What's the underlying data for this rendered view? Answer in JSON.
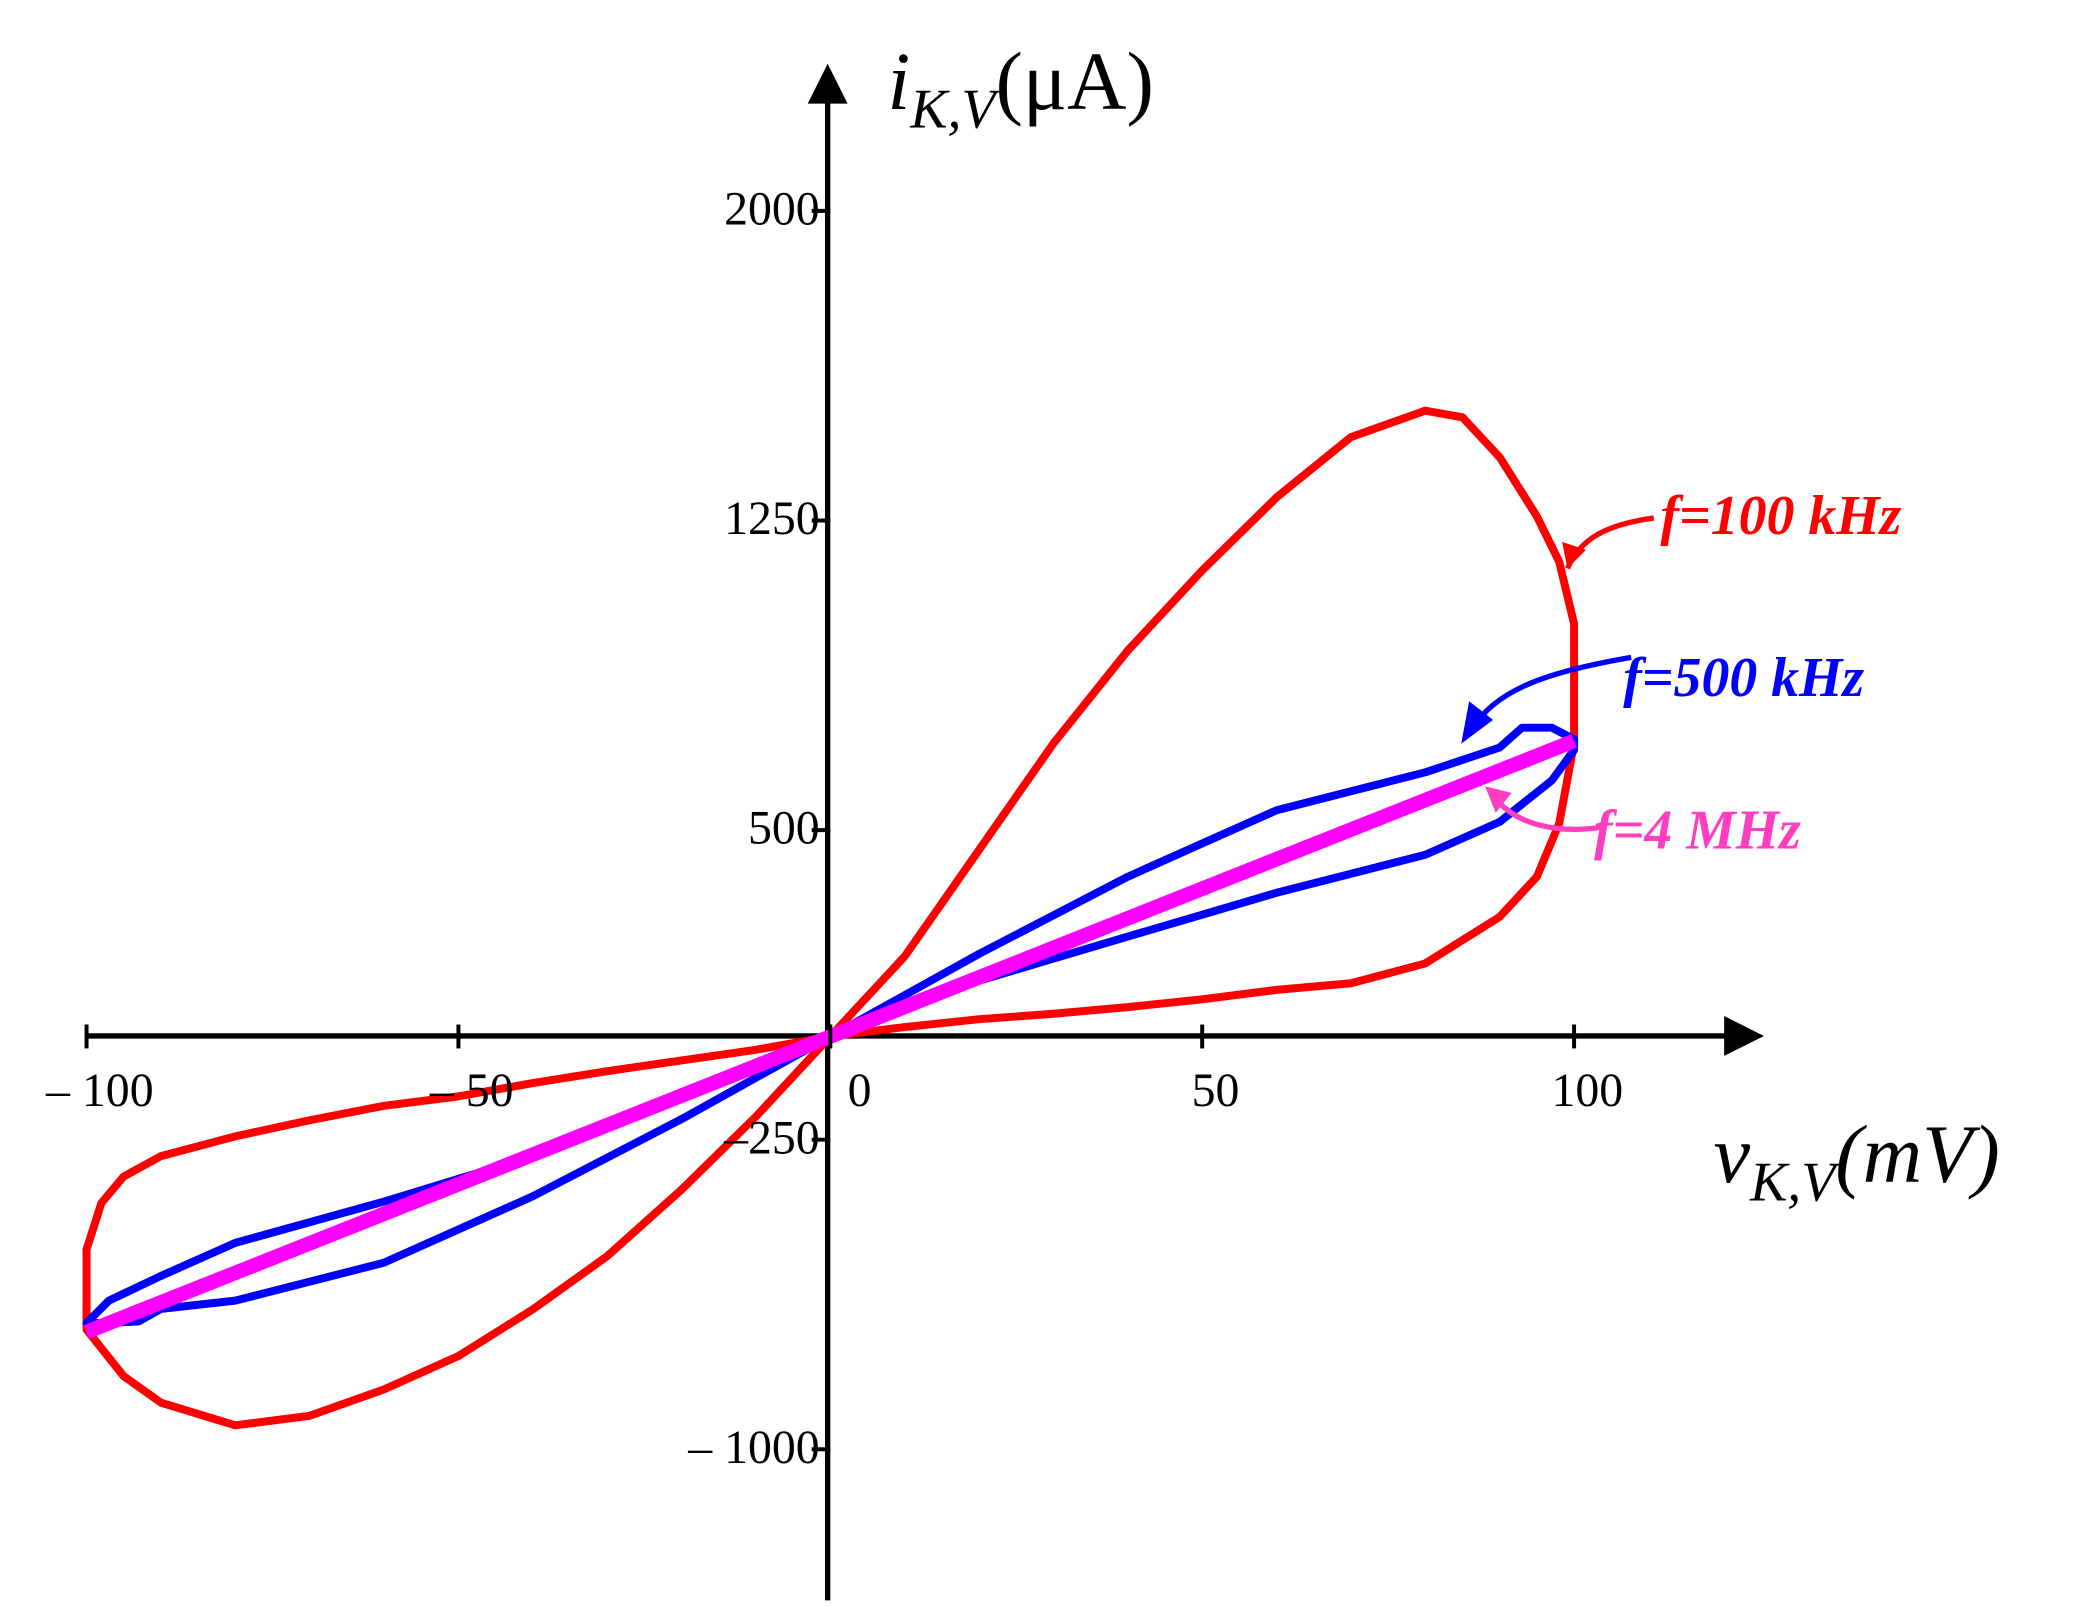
{
  "chart_data": {
    "type": "line",
    "x_label": {
      "main": "v",
      "sub": "K,V",
      "unit": "(mV)"
    },
    "y_label": {
      "main": "i",
      "sub": "K,V",
      "unit": "(μA)"
    },
    "xlim": [
      -100,
      125
    ],
    "ylim": [
      -1350,
      2350
    ],
    "xticks": [
      {
        "value": -100,
        "label": "– 100"
      },
      {
        "value": -50,
        "label": "– 50"
      },
      0,
      50,
      100
    ],
    "yticks": [
      {
        "value": -1000,
        "label": "– 1000"
      },
      {
        "value": -250,
        "label": "–250"
      },
      500,
      1250,
      2000
    ],
    "series": [
      {
        "name": "f=100 kHz",
        "color": "#ff0000",
        "x": [
          0,
          10,
          20,
          30,
          40,
          50,
          60,
          70,
          80,
          85,
          90,
          95,
          98,
          100,
          100,
          98,
          95,
          90,
          80,
          70,
          60,
          50,
          40,
          30,
          20,
          10,
          0,
          -10,
          -20,
          -30,
          -40,
          -50,
          -60,
          -70,
          -80,
          -90,
          -95,
          -100,
          -100,
          -98,
          -95,
          -90,
          -80,
          -70,
          -60,
          -50,
          -40,
          -30,
          -20,
          -10,
          0
        ],
        "values": [
          0,
          194,
          452,
          710,
          935,
          1129,
          1306,
          1452,
          1516,
          1500,
          1403,
          1260,
          1150,
          1000,
          710,
          516,
          387,
          290,
          177,
          129,
          113,
          90,
          71,
          55,
          42,
          23,
          0,
          -194,
          -371,
          -532,
          -661,
          -774,
          -855,
          -919,
          -942,
          -887,
          -823,
          -710,
          -516,
          -403,
          -339,
          -290,
          -242,
          -203,
          -168,
          -145,
          -113,
          -84,
          -58,
          -32,
          0
        ]
      },
      {
        "name": "f=500 kHz",
        "color": "#0000ff",
        "x": [
          0,
          20,
          40,
          60,
          80,
          90,
          93,
          97,
          100,
          100,
          97,
          90,
          80,
          60,
          40,
          20,
          0,
          -20,
          -40,
          -60,
          -80,
          -90,
          -93,
          -97,
          -100,
          -100,
          -97,
          -90,
          -80,
          -60,
          -40,
          -20,
          0
        ],
        "values": [
          0,
          200,
          387,
          548,
          640,
          700,
          748,
          748,
          720,
          694,
          620,
          520,
          440,
          348,
          242,
          135,
          0,
          -200,
          -387,
          -548,
          -640,
          -660,
          -690,
          -694,
          -694,
          -694,
          -640,
          -580,
          -500,
          -400,
          -290,
          -150,
          0
        ]
      },
      {
        "name": "f=4 MHz",
        "color": "#ff00ff",
        "x": [
          -100,
          0,
          100
        ],
        "values": [
          -716,
          0,
          716
        ]
      }
    ]
  }
}
